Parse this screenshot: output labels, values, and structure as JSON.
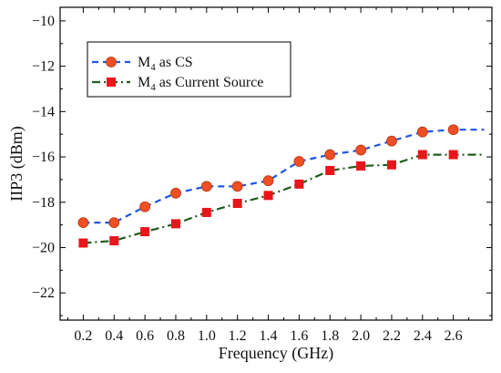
{
  "chart_data": {
    "type": "line",
    "title": "",
    "xlabel": "Frequency (GHz)",
    "ylabel": "IIP3 (dBm)",
    "x": [
      0.2,
      0.4,
      0.6,
      0.8,
      1.0,
      1.2,
      1.4,
      1.6,
      1.8,
      2.0,
      2.2,
      2.4,
      2.6
    ],
    "xlim": [
      0.05,
      2.85
    ],
    "ylim": [
      -23.2,
      -9.4
    ],
    "xticks": [
      "0.2",
      "0.4",
      "0.6",
      "0.8",
      "1.0",
      "1.2",
      "1.4",
      "1.6",
      "1.8",
      "2.0",
      "2.2",
      "2.4",
      "2.6"
    ],
    "yticks": [
      "−10",
      "−12",
      "−14",
      "−16",
      "−18",
      "−20",
      "−22"
    ],
    "ytick_values": [
      -10,
      -12,
      -14,
      -16,
      -18,
      -20,
      -22
    ],
    "grid": false,
    "legend_position": "top-left",
    "series": [
      {
        "name_base": "M",
        "name_sub": "4",
        "name_rest": " as CS",
        "color": "#1f55e6",
        "marker_color": "#f04e23",
        "marker": "circle",
        "line_style": "dashed",
        "values": [
          -18.9,
          -18.9,
          -18.2,
          -17.6,
          -17.3,
          -17.3,
          -17.05,
          -16.2,
          -15.9,
          -15.7,
          -15.3,
          -14.9,
          -14.8
        ],
        "line_end_x": 2.8,
        "line_end_y": -14.8
      },
      {
        "name_base": "M",
        "name_sub": "4",
        "name_rest": " as Current Source",
        "color": "#1e5d1e",
        "marker_color": "#e8151b",
        "marker": "square",
        "line_style": "dashdot",
        "values": [
          -19.8,
          -19.7,
          -19.3,
          -18.95,
          -18.45,
          -18.05,
          -17.7,
          -17.2,
          -16.6,
          -16.4,
          -16.35,
          -15.9,
          -15.9
        ],
        "line_end_x": 2.8,
        "line_end_y": -15.9
      }
    ]
  }
}
